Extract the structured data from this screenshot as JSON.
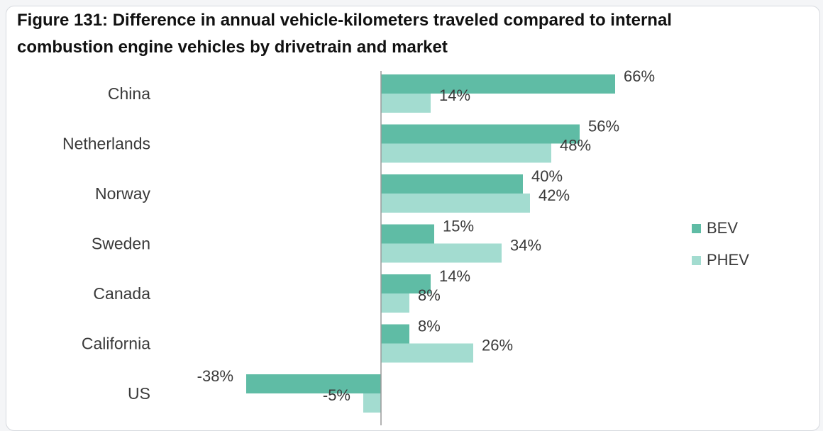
{
  "title": "Figure 131: Difference in annual vehicle-kilometers traveled compared to internal combustion engine vehicles by drivetrain and market",
  "colors": {
    "BEV": "#5fbca5",
    "PHEV": "#a3dcd0",
    "axis": "#9a9a9a",
    "text": "#3a3a3a",
    "title": "#111111"
  },
  "chart_data": {
    "type": "bar",
    "orientation": "horizontal",
    "title": "Figure 131: Difference in annual vehicle-kilometers traveled compared to internal combustion engine vehicles by drivetrain and market",
    "categories": [
      "China",
      "Netherlands",
      "Norway",
      "Sweden",
      "Canada",
      "California",
      "US"
    ],
    "series": [
      {
        "name": "BEV",
        "values": [
          66,
          56,
          40,
          15,
          14,
          8,
          -38
        ],
        "labels": [
          "66%",
          "56%",
          "40%",
          "15%",
          "14%",
          "8%",
          "-38%"
        ]
      },
      {
        "name": "PHEV",
        "values": [
          14,
          48,
          42,
          34,
          8,
          26,
          -5
        ],
        "labels": [
          "14%",
          "48%",
          "42%",
          "34%",
          "8%",
          "26%",
          "-5%"
        ]
      }
    ],
    "value_unit": "%",
    "xlim": [
      -40,
      70
    ],
    "grid": false,
    "legend_position": "right"
  }
}
